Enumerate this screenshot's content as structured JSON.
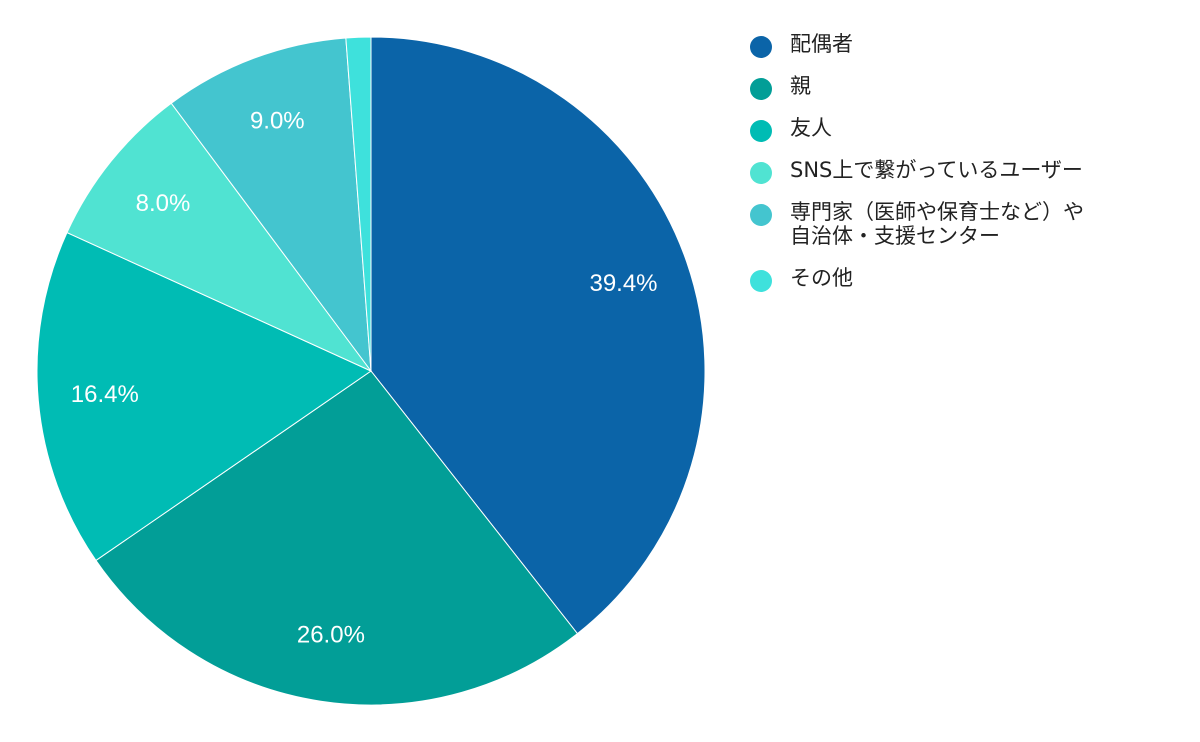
{
  "chart_data": {
    "type": "pie",
    "title": "",
    "categories": [
      "配偶者",
      "親",
      "友人",
      "SNS上で繋がっているユーザー",
      "専門家（医師や保育士など）や自治体・支援センター",
      "その他"
    ],
    "legend_lines": [
      [
        "配偶者"
      ],
      [
        "親"
      ],
      [
        "友人"
      ],
      [
        "SNS上で繋がっているユーザー"
      ],
      [
        "専門家（医師や保育士など）や",
        "自治体・支援センター"
      ],
      [
        "その他"
      ]
    ],
    "values": [
      39.4,
      26.0,
      16.4,
      8.0,
      9.0,
      1.2
    ],
    "labels": [
      "39.4%",
      "26.0%",
      "16.4%",
      "8.0%",
      "9.0%",
      ""
    ],
    "colors": [
      "#0B64A8",
      "#029E97",
      "#00BCB4",
      "#50E3D2",
      "#44C5CF",
      "#3EE1DC"
    ],
    "start_angle": "12 o'clock",
    "direction": "clockwise",
    "legend_position": "right"
  }
}
